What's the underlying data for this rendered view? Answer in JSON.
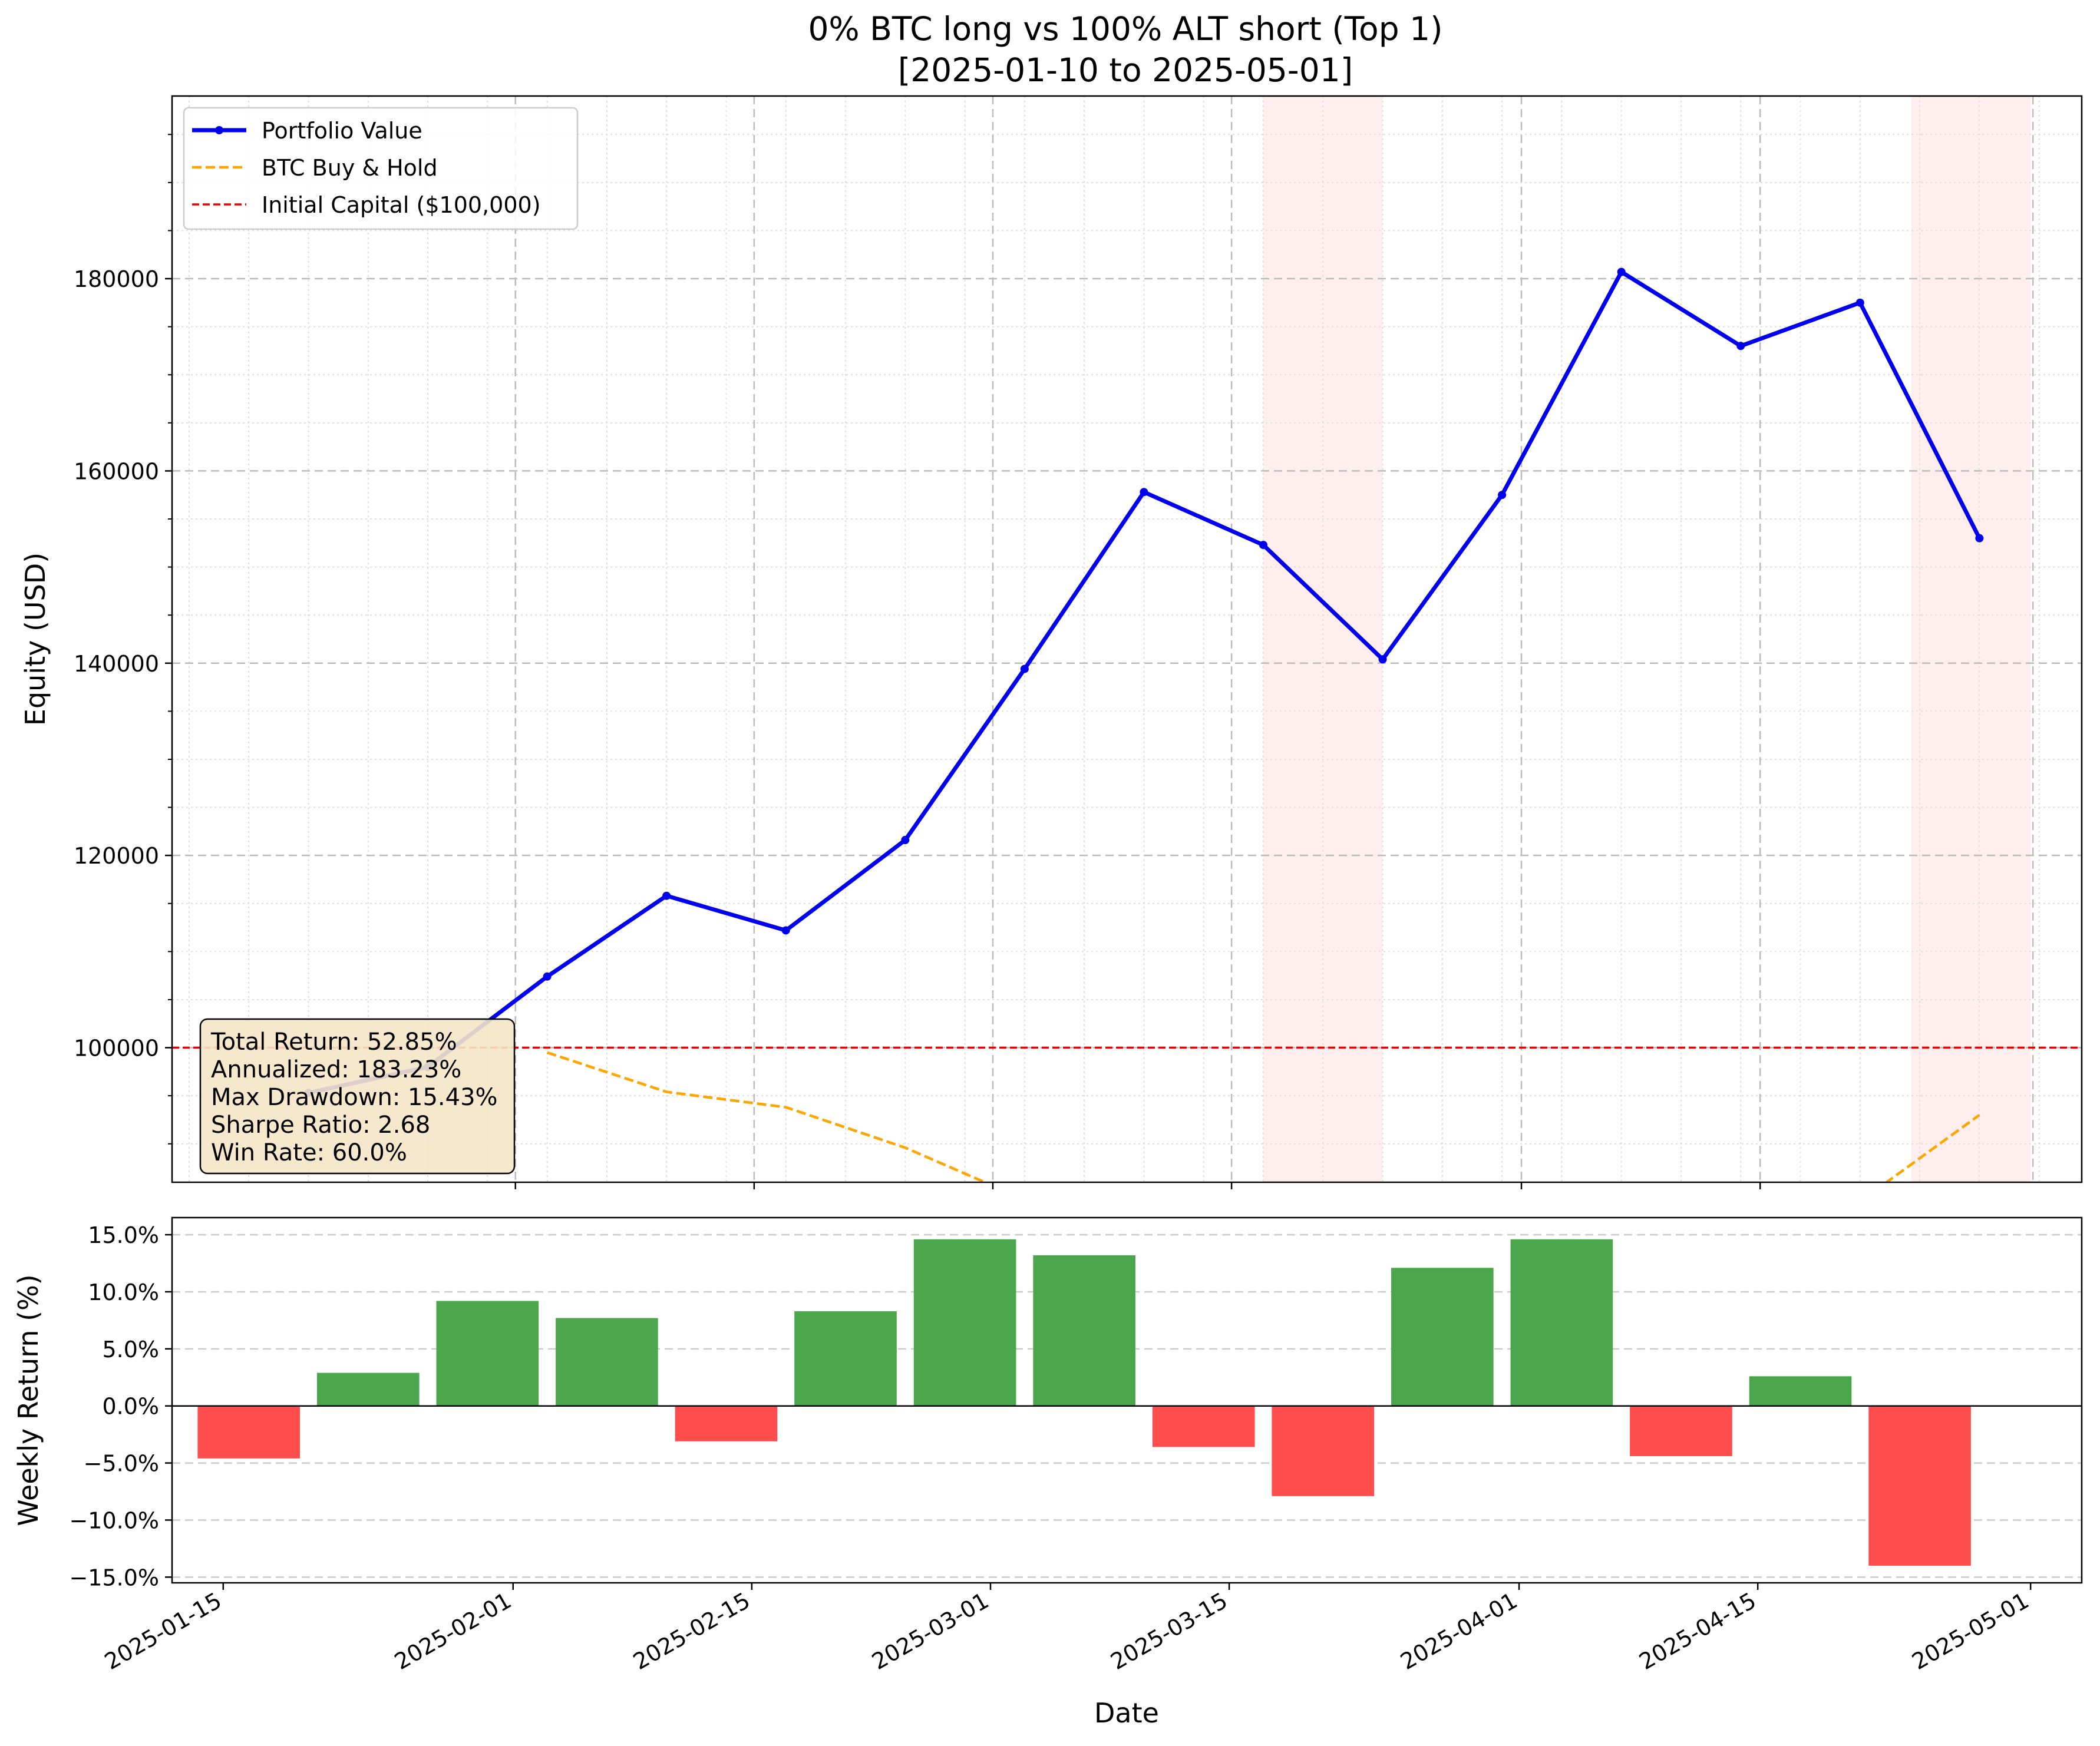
{
  "title_line1": "0% BTC long vs 100% ALT short (Top 1)",
  "title_line2": "[2025-01-10 to 2025-05-01]",
  "colors": {
    "portfolio": "#0000ee",
    "btc": "#ffa500",
    "initial": "#ee0000",
    "positive": "#4ca64c",
    "negative": "#ff4c4c",
    "shade": "#ffeeee",
    "stats_box": "#f5e6c8"
  },
  "stats_box": {
    "lines": [
      "Total Return: 52.85%",
      "Annualized: 183.23%",
      "Max Drawdown: 15.43%",
      "Sharpe Ratio: 2.68",
      "Win Rate: 60.0%"
    ]
  },
  "chart_data": [
    {
      "type": "line",
      "ylabel": "Equity (USD)",
      "ylim": [
        86000,
        199000
      ],
      "yticks": [
        100000,
        120000,
        140000,
        160000,
        180000
      ],
      "xlim": [
        "2025-01-12",
        "2025-05-04"
      ],
      "x_major_ticks": [
        "2025-02-01",
        "2025-02-15",
        "2025-03-01",
        "2025-03-15",
        "2025-04-01",
        "2025-04-15"
      ],
      "grid": true,
      "legend": "top-left",
      "legend_entries": [
        "Portfolio Value",
        "BTC Buy & Hold",
        "Initial Capital ($100,000)"
      ],
      "shaded_ranges": [
        [
          "2025-03-17",
          "2025-03-24"
        ],
        [
          "2025-04-24",
          "2025-05-01"
        ]
      ],
      "series": [
        {
          "name": "Portfolio Value",
          "style": "solid-markers",
          "x": [
            "2025-01-13",
            "2025-01-20",
            "2025-01-27",
            "2025-02-03",
            "2025-02-10",
            "2025-02-17",
            "2025-02-24",
            "2025-03-03",
            "2025-03-10",
            "2025-03-17",
            "2025-03-24",
            "2025-03-31",
            "2025-04-07",
            "2025-04-14",
            "2025-04-21",
            "2025-04-28",
            "2025-05-01"
          ],
          "y": [
            null,
            95300,
            98000,
            107400,
            115800,
            112200,
            121600,
            139400,
            157800,
            152300,
            140400,
            157500,
            180700,
            173000,
            177500,
            153000,
            null
          ]
        },
        {
          "name": "BTC Buy & Hold",
          "style": "dashed",
          "x": [
            "2025-01-20",
            "2025-01-27",
            "2025-02-03",
            "2025-02-10",
            "2025-02-17",
            "2025-02-24",
            "2025-03-03",
            "2025-04-21",
            "2025-04-28"
          ],
          "y": [
            null,
            null,
            99500,
            95400,
            93800,
            89600,
            84200,
            84000,
            93000
          ]
        },
        {
          "name": "Initial Capital ($100,000)",
          "style": "dashed-horizontal",
          "y_constant": 100000
        }
      ]
    },
    {
      "type": "bar",
      "xlabel": "Date",
      "ylabel": "Weekly Return (%)",
      "ylim": [
        -15.5,
        16.5
      ],
      "yticks": [
        -15,
        -10,
        -5,
        0,
        5,
        10,
        15
      ],
      "ytick_labels": [
        "−15.0%",
        "−10.0%",
        "−5.0%",
        "0.0%",
        "5.0%",
        "10.0%",
        "15.0%"
      ],
      "xlim": [
        "2025-01-12",
        "2025-05-04"
      ],
      "xticks": [
        "2025-01-15",
        "2025-02-01",
        "2025-02-15",
        "2025-03-01",
        "2025-03-15",
        "2025-04-01",
        "2025-04-15",
        "2025-05-01"
      ],
      "grid": true,
      "x": [
        "2025-01-20",
        "2025-01-27",
        "2025-02-03",
        "2025-02-10",
        "2025-02-17",
        "2025-02-24",
        "2025-03-03",
        "2025-03-10",
        "2025-03-17",
        "2025-03-24",
        "2025-03-31",
        "2025-04-07",
        "2025-04-14",
        "2025-04-21",
        "2025-04-28"
      ],
      "values": [
        -4.6,
        2.9,
        9.2,
        7.7,
        -3.1,
        8.3,
        14.6,
        13.2,
        -3.6,
        -7.9,
        12.1,
        14.6,
        -4.4,
        2.6,
        -14.0
      ]
    }
  ]
}
